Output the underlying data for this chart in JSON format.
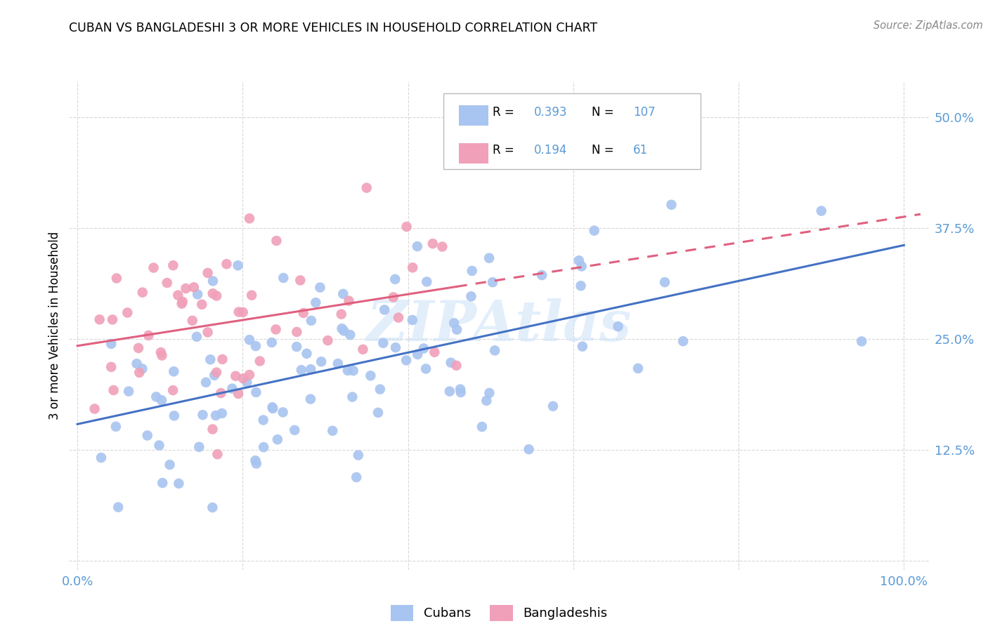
{
  "title": "CUBAN VS BANGLADESHI 3 OR MORE VEHICLES IN HOUSEHOLD CORRELATION CHART",
  "source": "Source: ZipAtlas.com",
  "ylabel": "3 or more Vehicles in Household",
  "cubans_R": 0.393,
  "cubans_N": 107,
  "bangladeshis_R": 0.194,
  "bangladeshis_N": 61,
  "cuban_color": "#a8c4f0",
  "bangladeshi_color": "#f0a0b8",
  "cuban_line_color": "#4472c4",
  "bangladeshi_line_color": "#e06080",
  "legend_label_cuban": "Cubans",
  "legend_label_bangladeshi": "Bangladeshis",
  "background_color": "#ffffff",
  "grid_color": "#d8d8d8",
  "tick_color": "#5b9bd5",
  "title_color": "#000000",
  "watermark_color": "#c8dff8",
  "watermark_alpha": 0.5
}
